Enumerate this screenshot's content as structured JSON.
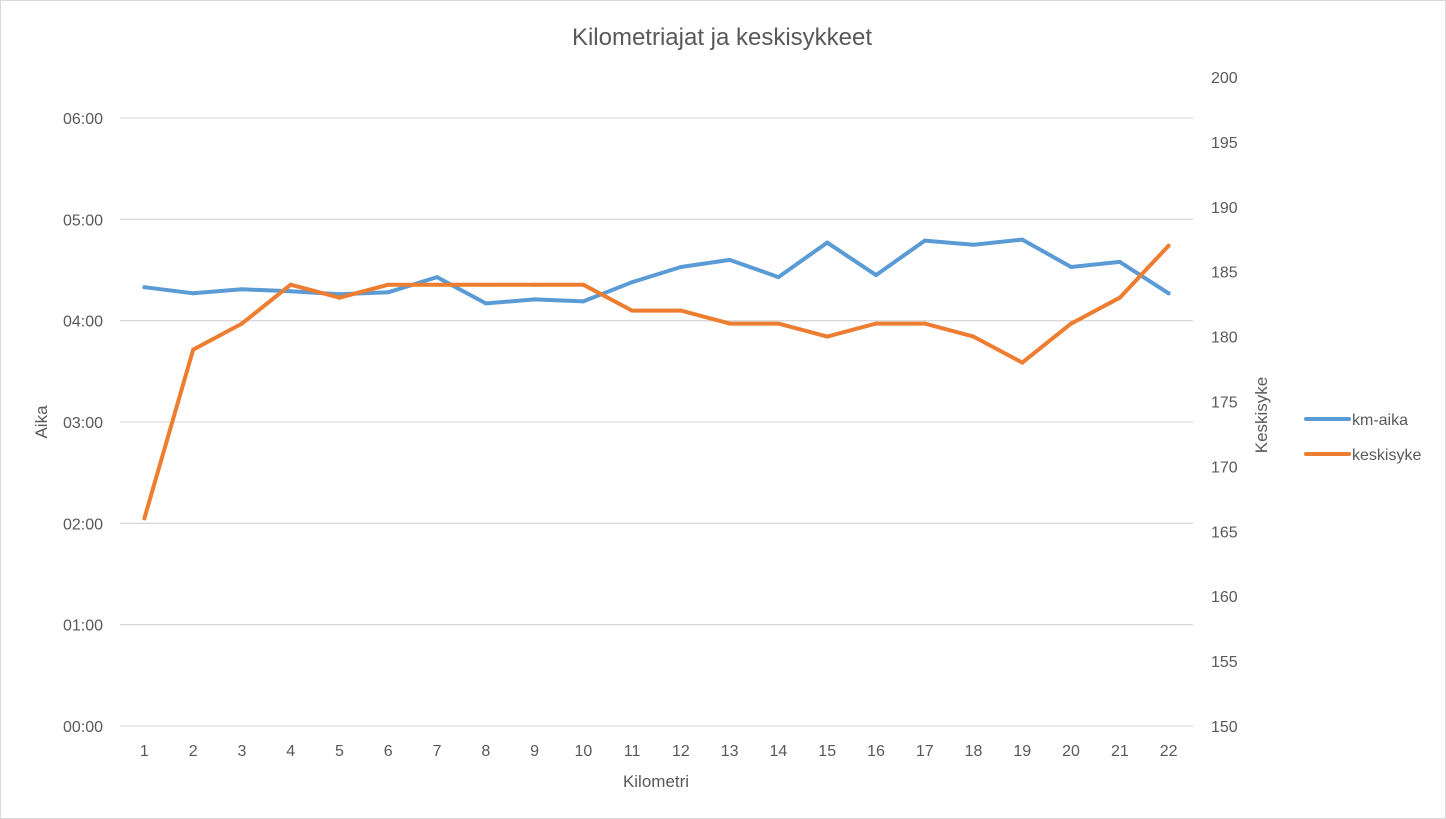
{
  "chart_data": {
    "type": "line",
    "title": "Kilometriajat ja keskisykkeet",
    "xlabel": "Kilometri",
    "ylabel": "Aika",
    "y2label": "Keskisyke",
    "categories": [
      "1",
      "2",
      "3",
      "4",
      "5",
      "6",
      "7",
      "8",
      "9",
      "10",
      "11",
      "12",
      "13",
      "14",
      "15",
      "16",
      "17",
      "18",
      "19",
      "20",
      "21",
      "22"
    ],
    "y_ticks": [
      "00:00",
      "01:00",
      "02:00",
      "03:00",
      "04:00",
      "05:00",
      "06:00"
    ],
    "y2_ticks": [
      "150",
      "155",
      "160",
      "165",
      "170",
      "175",
      "180",
      "185",
      "190",
      "195",
      "200"
    ],
    "ylim_minutes": [
      0,
      6
    ],
    "y2lim": [
      150,
      200
    ],
    "grid": true,
    "legend_position": "right",
    "series": [
      {
        "name": "km-aika",
        "axis": "left",
        "color": "#5b9bd5",
        "values_minutes": [
          4.33,
          4.27,
          4.31,
          4.29,
          4.26,
          4.28,
          4.43,
          4.17,
          4.21,
          4.19,
          4.38,
          4.53,
          4.6,
          4.43,
          4.77,
          4.45,
          4.79,
          4.75,
          4.8,
          4.53,
          4.58,
          4.27
        ]
      },
      {
        "name": "keskisyke",
        "axis": "right",
        "color": "#ed7d31",
        "values": [
          166,
          179,
          181,
          184,
          183,
          184,
          184,
          184,
          184,
          184,
          182,
          182,
          181,
          181,
          180,
          181,
          181,
          180,
          178,
          181,
          183,
          187
        ]
      }
    ]
  }
}
